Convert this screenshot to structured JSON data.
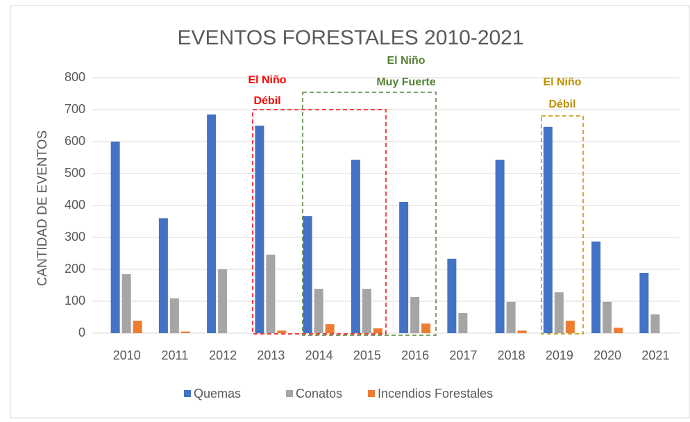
{
  "chart_data": {
    "type": "bar",
    "title": "EVENTOS FORESTALES 2010-2021",
    "y_label": "CANTIDAD DE EVENTOS",
    "categories": [
      "2010",
      "2011",
      "2012",
      "2013",
      "2014",
      "2015",
      "2016",
      "2017",
      "2018",
      "2019",
      "2020",
      "2021"
    ],
    "series": [
      {
        "name": "Quemas",
        "color": "#4472c4",
        "values": [
          600,
          360,
          685,
          650,
          367,
          543,
          411,
          233,
          543,
          646,
          287,
          189
        ]
      },
      {
        "name": "Conatos",
        "color": "#a5a5a5",
        "values": [
          185,
          109,
          200,
          246,
          139,
          139,
          113,
          63,
          98,
          128,
          98,
          59
        ]
      },
      {
        "name": "Incendios Forestales",
        "color": "#ed7d31",
        "values": [
          39,
          5,
          0,
          8,
          28,
          15,
          30,
          0,
          8,
          39,
          17,
          0
        ]
      }
    ],
    "ylim": [
      0,
      800
    ],
    "yticks": [
      0,
      100,
      200,
      300,
      400,
      500,
      600,
      700,
      800
    ],
    "grid": true,
    "legend": "bottom",
    "annotations": [
      {
        "lines": [
          "El Niño",
          "Débil"
        ],
        "color": "#ff0000"
      },
      {
        "lines": [
          "El Niño",
          "Muy Fuerte"
        ],
        "color": "#548235"
      },
      {
        "lines": [
          "El Niño",
          "Débil"
        ],
        "color": "#bf9000"
      }
    ]
  }
}
